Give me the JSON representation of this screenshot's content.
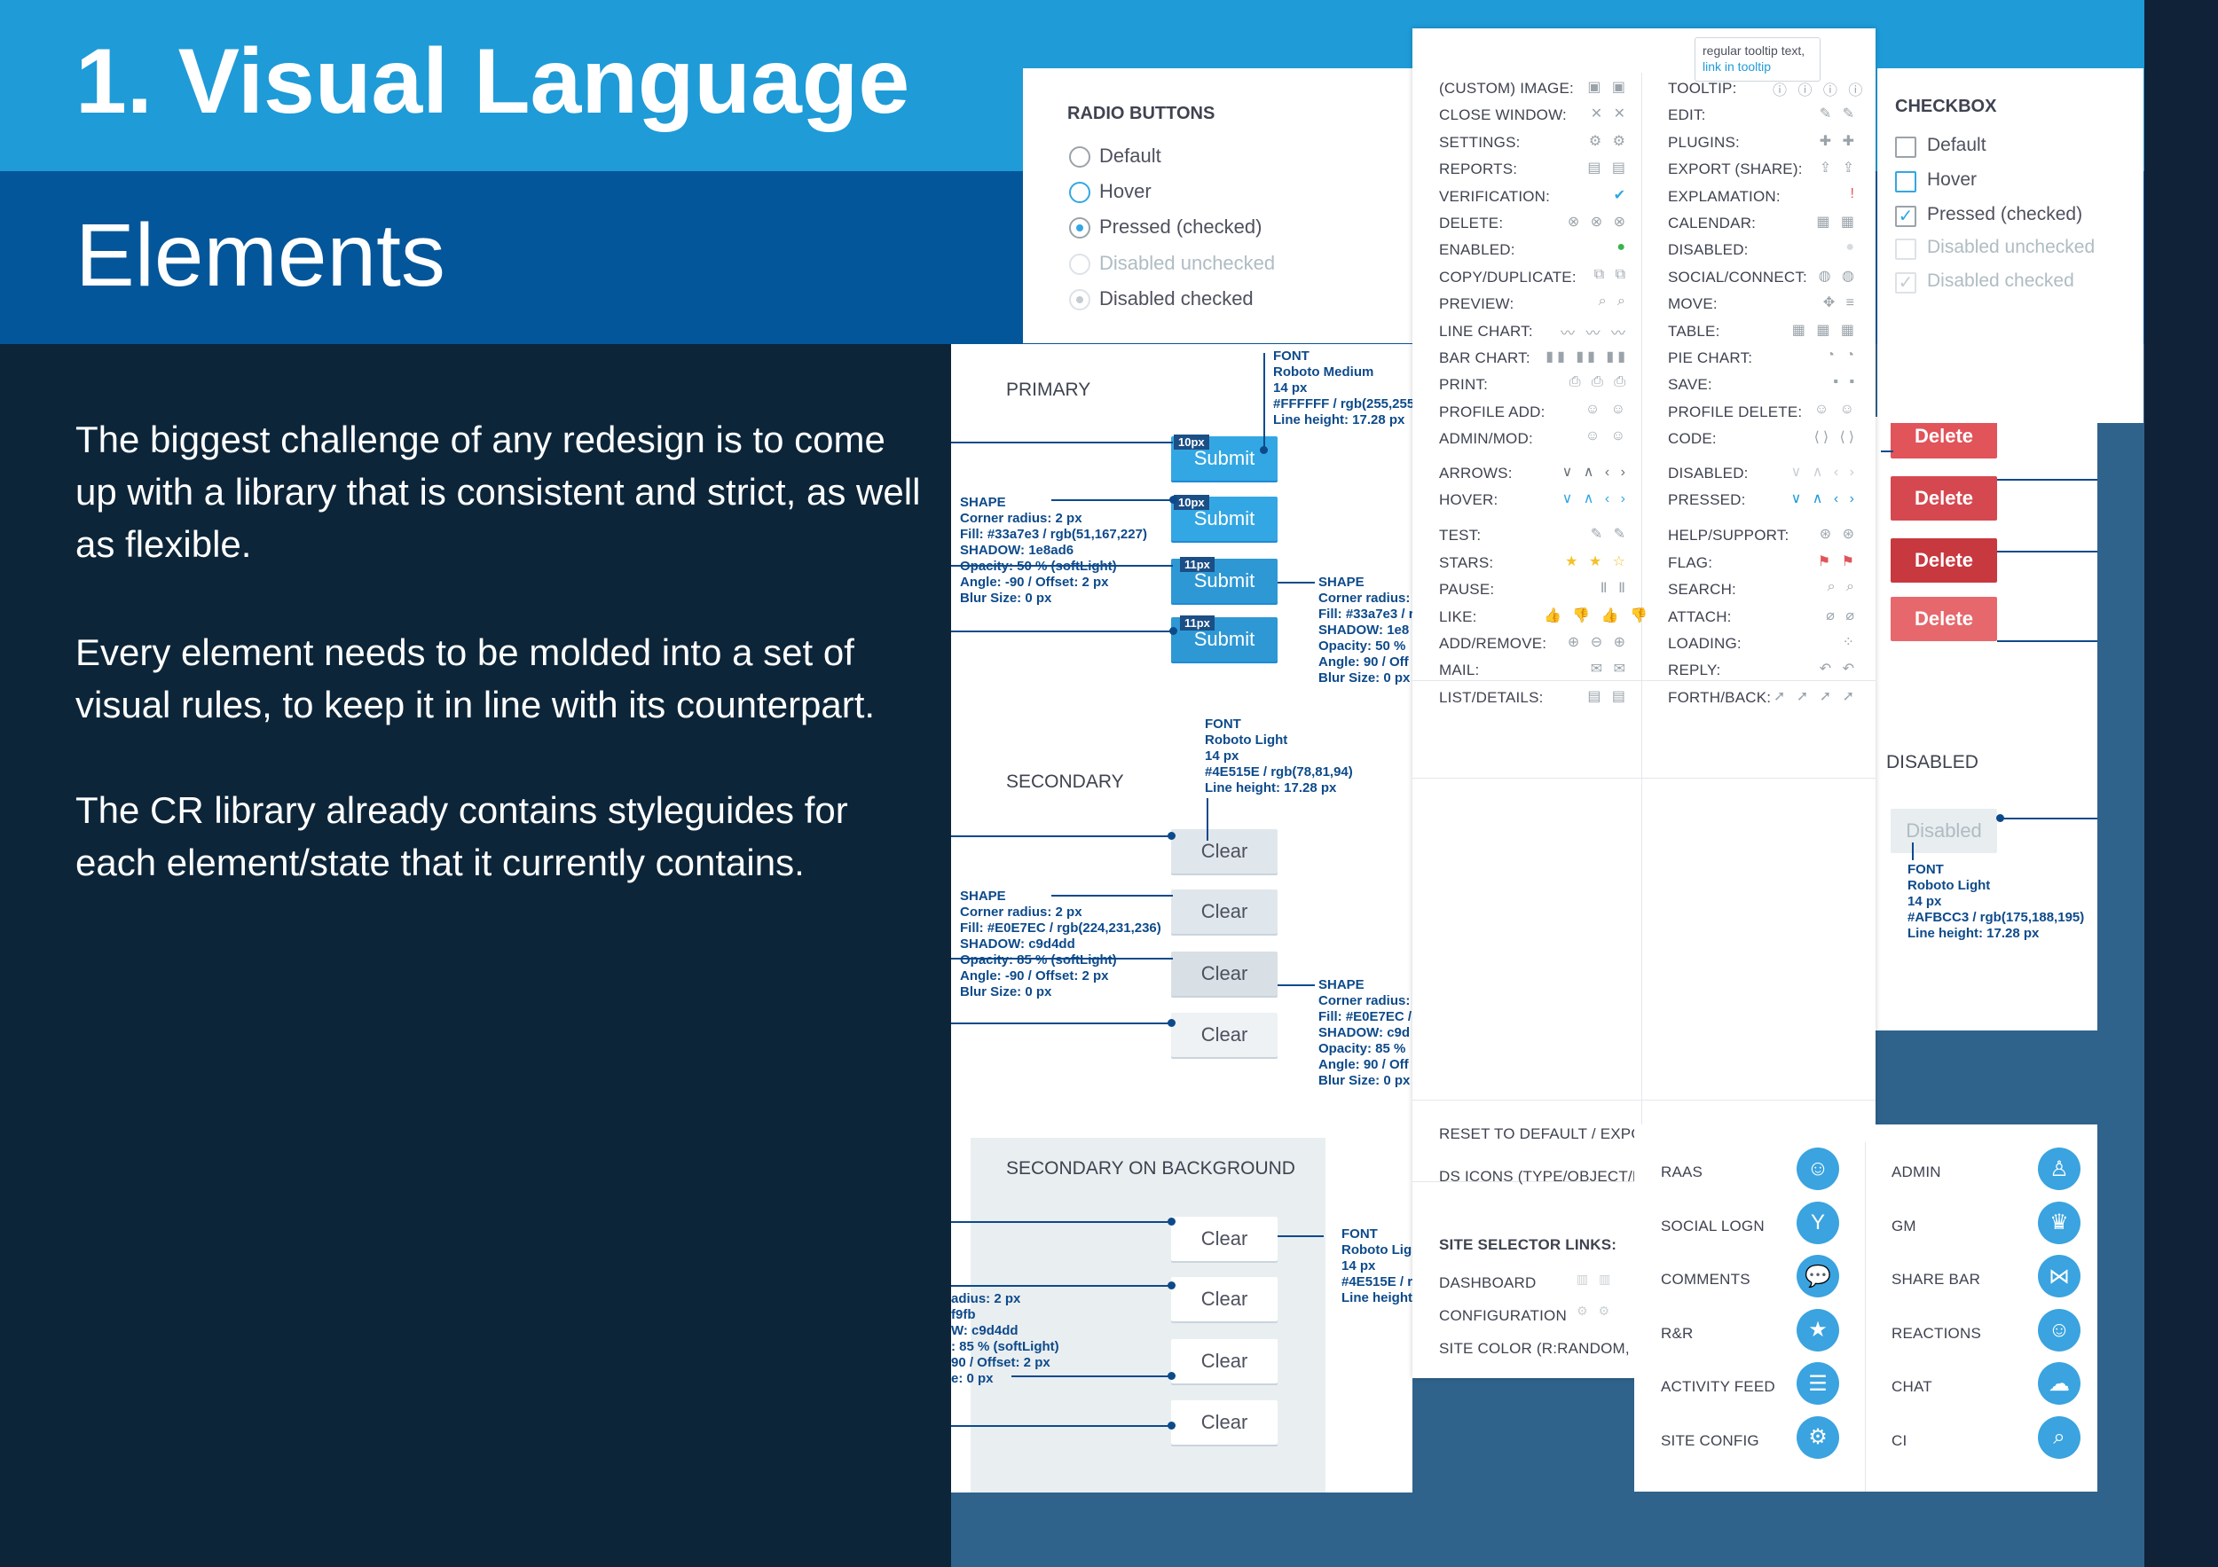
{
  "slide": {
    "title": "1. Visual Language",
    "subtitle": "Elements",
    "paragraphs": [
      "The biggest challenge of any redesign is to come up with a library that is consistent and strict, as well as flexible.",
      "Every element needs to be molded into a set of visual rules, to keep it in line with its counterpart.",
      "The CR library already contains styleguides for each element/state that it currently contains."
    ]
  },
  "radio": {
    "title": "RADIO BUTTONS",
    "items": [
      "Default",
      "Hover",
      "Pressed (checked)",
      "Disabled unchecked",
      "Disabled checked"
    ]
  },
  "checkbox": {
    "title": "CHECKBOX",
    "items": [
      "Default",
      "Hover",
      "Pressed (checked)",
      "Disabled unchecked",
      "Disabled checked"
    ]
  },
  "tooltip": {
    "text": "regular tooltip text,",
    "link": "link in tooltip"
  },
  "icon_rows_left": [
    "(CUSTOM) IMAGE:",
    "CLOSE WINDOW:",
    "SETTINGS:",
    "REPORTS:",
    "VERIFICATION:",
    "DELETE:",
    "ENABLED:",
    "COPY/DUPLICATE:",
    "PREVIEW:",
    "LINE CHART:",
    "BAR CHART:",
    "PRINT:",
    "PROFILE ADD:",
    "ADMIN/MOD:",
    "ARROWS:",
    "HOVER:",
    "TEST:",
    "STARS:",
    "PAUSE:",
    "LIKE:",
    "ADD/REMOVE:",
    "MAIL:",
    "LIST/DETAILS:"
  ],
  "icon_rows_right": [
    "TOOLTIP:",
    "EDIT:",
    "PLUGINS:",
    "EXPORT (SHARE):",
    "EXPLAMATION:",
    "CALENDAR:",
    "DISABLED:",
    "SOCIAL/CONNECT:",
    "MOVE:",
    "TABLE:",
    "PIE CHART:",
    "SAVE:",
    "PROFILE DELETE:",
    "CODE:",
    "DISABLED:",
    "PRESSED:",
    "HELP/SUPPORT:",
    "FLAG:",
    "SEARCH:",
    "ATTACH:",
    "LOADING:",
    "REPLY:",
    "FORTH/BACK:"
  ],
  "misc_rows": [
    "RESET TO DEFAULT / EXPORT",
    "DS ICONS (TYPE/OBJECT/FI"
  ],
  "site_selector": {
    "title": "SITE SELECTOR LINKS:",
    "items": [
      "DASHBOARD",
      "CONFIGURATION",
      "SITE COLOR (R:RANDOM, G:R"
    ]
  },
  "big_icons_left": [
    "RAAS",
    "SOCIAL LOGN",
    "COMMENTS",
    "R&R",
    "ACTIVITY FEED",
    "SITE CONFIG"
  ],
  "big_icons_right": [
    "ADMIN",
    "GM",
    "SHARE BAR",
    "REACTIONS",
    "CHAT",
    "CI"
  ],
  "buttons": {
    "primary_title": "PRIMARY",
    "secondary_title": "SECONDARY",
    "secbg_title": "SECONDARY ON BACKGROUND",
    "disabled_title": "DISABLED",
    "submit": "Submit",
    "clear": "Clear",
    "delete": "Delete",
    "disabled": "Disabled",
    "tag_10": "10px",
    "tag_11": "11px"
  },
  "specs": {
    "font_primary": "FONT\nRoboto Medium\n14 px\n#FFFFFF / rgb(255,255\nLine height: 17.28 px",
    "shape_primary": "SHAPE\nCorner radius: 2 px\nFill: #33a7e3 / rgb(51,167,227)\nSHADOW: 1e8ad6\nOpacity: 50 % (softLight)\nAngle: -90 / Offset: 2 px\nBlur Size: 0 px",
    "shape_primary2": "SHAPE\nCorner radius:\nFill: #33a7e3 / r\nSHADOW: 1e8\nOpacity: 50 %\nAngle: 90 / Off\nBlur Size: 0 px",
    "font_secondary": "FONT\nRoboto Light\n14 px\n#4E515E / rgb(78,81,94)\nLine height: 17.28 px",
    "shape_secondary": "SHAPE\nCorner radius: 2 px\nFill: #E0E7EC / rgb(224,231,236)\nSHADOW: c9d4dd\nOpacity: 85 % (softLight)\nAngle: -90 / Offset: 2 px\nBlur Size: 0 px",
    "shape_secondary2": "SHAPE\nCorner radius:\nFill: #E0E7EC /\nSHADOW: c9d\nOpacity: 85 %\nAngle: 90 / Off\nBlur Size: 0 px",
    "font_secbg": "FONT\nRoboto Lig\n14 px\n#4E515E / r\nLine height",
    "shape_secbg": "adius: 2 px\nf9fb\nW: c9d4dd\n: 85 % (softLight)\n90 / Offset: 2 px\ne: 0 px",
    "font_disabled": "FONT\nRoboto Light\n14 px\n#AFBCC3 / rgb(175,188,195)\nLine height: 17.28 px"
  },
  "colors": {
    "band_top": "#1f9bd7",
    "band_mid": "#04569a",
    "dark_bg": "#0c2539",
    "accent": "#33a7e3",
    "delete": "#e0545a"
  }
}
